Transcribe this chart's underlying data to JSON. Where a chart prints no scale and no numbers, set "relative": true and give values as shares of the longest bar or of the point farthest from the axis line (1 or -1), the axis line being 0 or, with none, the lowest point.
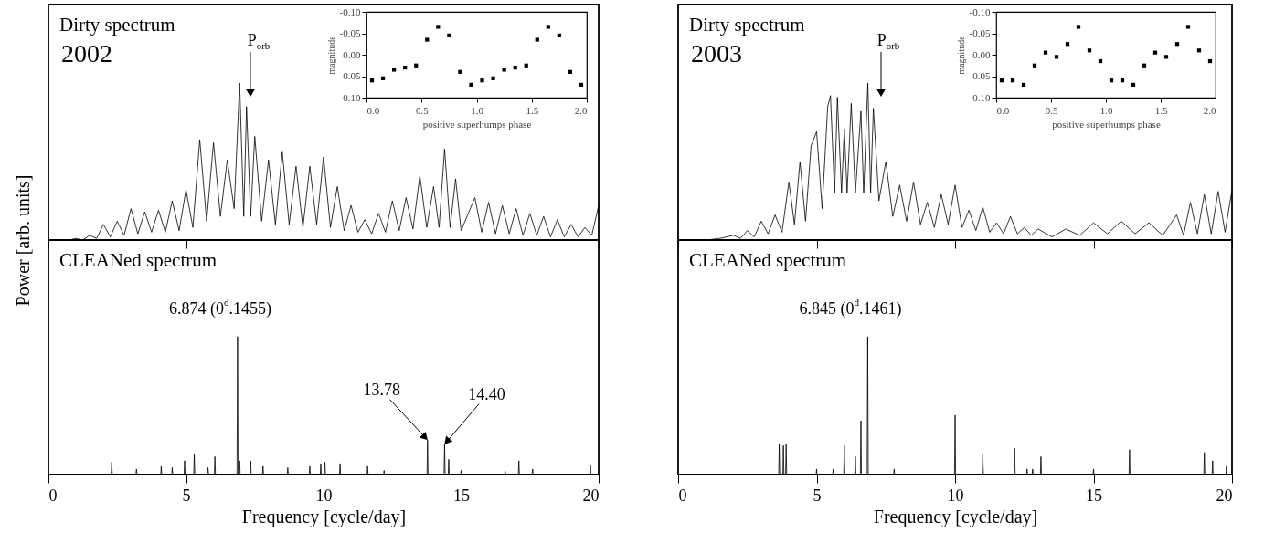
{
  "chart_data": [
    {
      "type": "line",
      "title": "Dirty spectrum",
      "subtitle": "2002",
      "ylabel": "Power [arb. units]",
      "relative": true,
      "xlim": [
        0,
        20
      ],
      "xticks": [
        0,
        5,
        10,
        15,
        20
      ],
      "tick_labels": false,
      "annotations": [
        "P$_{orb}$"
      ],
      "x": [
        0,
        0.25,
        0.5,
        0.75,
        1,
        1.25,
        1.5,
        1.75,
        2,
        2.25,
        2.5,
        2.75,
        3,
        3.25,
        3.5,
        3.75,
        4,
        4.25,
        4.5,
        4.75,
        5,
        5.25,
        5.5,
        5.75,
        6,
        6.25,
        6.5,
        6.75,
        6.95,
        7.1,
        7.2,
        7.35,
        7.5,
        7.75,
        8,
        8.25,
        8.5,
        8.75,
        9,
        9.25,
        9.5,
        9.75,
        10,
        10.25,
        10.5,
        10.75,
        11,
        11.25,
        11.5,
        11.75,
        12,
        12.25,
        12.5,
        12.75,
        13,
        13.25,
        13.5,
        13.75,
        14,
        14.2,
        14.4,
        14.6,
        14.8,
        15,
        15.5,
        15.75,
        16,
        16.25,
        16.5,
        16.75,
        17,
        17.25,
        17.5,
        17.75,
        18,
        18.25,
        18.5,
        18.75,
        19,
        19.25,
        19.5,
        19.75,
        20
      ],
      "series": [
        {
          "color": "#000000",
          "values": [
            0,
            0,
            0,
            0,
            0.01,
            0,
            0.03,
            0.01,
            0.1,
            0.02,
            0.12,
            0.03,
            0.2,
            0.04,
            0.18,
            0.05,
            0.19,
            0.05,
            0.25,
            0.06,
            0.32,
            0.08,
            0.64,
            0.12,
            0.62,
            0.15,
            0.51,
            0.2,
            1,
            0.15,
            0.85,
            0.15,
            0.66,
            0.12,
            0.51,
            0.1,
            0.56,
            0.1,
            0.47,
            0.08,
            0.47,
            0.1,
            0.53,
            0.08,
            0.34,
            0.06,
            0.22,
            0.05,
            0.13,
            0.04,
            0.17,
            0.05,
            0.25,
            0.06,
            0.27,
            0.07,
            0.41,
            0.08,
            0.34,
            0.08,
            0.58,
            0.08,
            0.39,
            0.06,
            0.27,
            0.05,
            0.24,
            0.04,
            0.22,
            0.04,
            0.2,
            0.03,
            0.17,
            0.03,
            0.15,
            0.02,
            0.13,
            0.02,
            0.1,
            0.02,
            0.08,
            0.03,
            0.22
          ]
        }
      ]
    },
    {
      "type": "scatter",
      "xlabel": "positive superhumps phase",
      "ylabel": "magnitude",
      "marker": "square",
      "xlim": [
        0,
        2
      ],
      "ylim": [
        0.1,
        -0.1
      ],
      "xticks": [
        {
          "value": 0,
          "label": "0.0"
        },
        {
          "value": 0.5,
          "label": "0.5"
        },
        {
          "value": 1,
          "label": "1.0"
        },
        {
          "value": 1.5,
          "label": "1.5"
        },
        {
          "value": 2,
          "label": "2.0"
        }
      ],
      "yticks": [
        {
          "value": -0.1,
          "label": "-0.10"
        },
        {
          "value": -0.05,
          "label": "-0.05"
        },
        {
          "value": 0,
          "label": "0.00"
        },
        {
          "value": 0.05,
          "label": "0.05"
        },
        {
          "value": 0.1,
          "label": "0.10"
        }
      ],
      "x": [
        0.05,
        0.15,
        0.25,
        0.35,
        0.45,
        0.55,
        0.65,
        0.75,
        0.85,
        0.95,
        1.05,
        1.15,
        1.25,
        1.35,
        1.45,
        1.55,
        1.65,
        1.75,
        1.85,
        1.95
      ],
      "series": [
        {
          "color": "#000000",
          "values": [
            0.06,
            0.055,
            0.035,
            0.03,
            0.025,
            -0.035,
            -0.065,
            -0.045,
            0.04,
            0.07,
            0.06,
            0.055,
            0.035,
            0.03,
            0.025,
            -0.035,
            -0.065,
            -0.045,
            0.04,
            0.07
          ]
        }
      ]
    },
    {
      "type": "line",
      "title": "CLEANed spectrum",
      "xlabel": "Frequency [cycle/day]",
      "relative": true,
      "xlim": [
        0,
        20
      ],
      "xticks": [
        0,
        5,
        10,
        15,
        20
      ],
      "tick_labels": "x",
      "annotations": [
        {
          "text": "6.874 (0$^{d}$.1455)",
          "x": 6.874,
          "y": 1
        },
        {
          "text": "13.78",
          "x": 13.78,
          "y": 0.25
        },
        {
          "text": "14.40",
          "x": 14.4,
          "y": 0.22
        }
      ],
      "x": [
        0,
        2.28,
        2.3,
        2.32,
        3.18,
        3.2,
        3.22,
        4.08,
        4.1,
        4.12,
        4.48,
        4.5,
        4.52,
        4.93,
        4.95,
        4.97,
        5.28,
        5.3,
        5.32,
        5.78,
        5.8,
        5.82,
        6.03,
        6.05,
        6.07,
        6.854,
        6.874,
        6.894,
        6.93,
        6.95,
        6.97,
        7.33,
        7.35,
        7.37,
        7.78,
        7.8,
        7.82,
        8.68,
        8.7,
        8.72,
        9.48,
        9.5,
        9.52,
        9.88,
        9.9,
        9.92,
        10.03,
        10.05,
        10.07,
        10.58,
        10.6,
        10.62,
        11.58,
        11.6,
        11.62,
        12.18,
        12.2,
        12.22,
        13.76,
        13.78,
        13.8,
        14.38,
        14.4,
        14.42,
        14.53,
        14.55,
        14.57,
        14.98,
        15,
        15.02,
        16.58,
        16.6,
        16.62,
        17.08,
        17.1,
        17.12,
        17.58,
        17.6,
        17.62,
        19.68,
        19.7,
        19.72,
        20
      ],
      "series": [
        {
          "color": "#000000",
          "values": [
            0,
            0,
            0.09,
            0,
            0,
            0.04,
            0,
            0,
            0.06,
            0,
            0,
            0.05,
            0,
            0,
            0.1,
            0,
            0,
            0.15,
            0,
            0,
            0.05,
            0,
            0,
            0.13,
            0,
            0,
            1,
            0,
            0,
            0.1,
            0,
            0,
            0.1,
            0,
            0,
            0.06,
            0,
            0,
            0.05,
            0,
            0,
            0.06,
            0,
            0,
            0.08,
            0,
            0,
            0.09,
            0,
            0,
            0.08,
            0,
            0,
            0.06,
            0,
            0,
            0.03,
            0,
            0,
            0.25,
            0,
            0,
            0.22,
            0,
            0,
            0.11,
            0,
            0,
            0.03,
            0,
            0,
            0.03,
            0,
            0,
            0.1,
            0,
            0,
            0.04,
            0,
            0,
            0.07,
            0,
            0
          ]
        }
      ]
    },
    {
      "type": "line",
      "title": "Dirty spectrum",
      "subtitle": "2003",
      "relative": true,
      "xlim": [
        0,
        20
      ],
      "xticks": [
        0,
        5,
        10,
        15,
        20
      ],
      "tick_labels": false,
      "annotations": [
        "P$_{orb}$"
      ],
      "x": [
        0,
        0.5,
        1,
        1.5,
        2,
        2.25,
        2.5,
        2.75,
        3,
        3.25,
        3.5,
        3.75,
        4,
        4.2,
        4.4,
        4.6,
        4.8,
        5,
        5.2,
        5.4,
        5.5,
        5.65,
        5.75,
        5.9,
        6,
        6.1,
        6.25,
        6.4,
        6.6,
        6.7,
        6.85,
        6.95,
        7.05,
        7.25,
        7.5,
        7.75,
        8,
        8.25,
        8.5,
        8.75,
        9,
        9.25,
        9.5,
        9.75,
        10,
        10.25,
        10.5,
        10.75,
        11,
        11.25,
        11.5,
        11.75,
        12,
        12.25,
        12.5,
        12.75,
        13,
        13.5,
        14,
        14.5,
        15,
        15.5,
        16,
        16.5,
        17,
        17.5,
        18,
        18.25,
        18.5,
        18.75,
        19,
        19.25,
        19.5,
        19.75,
        20
      ],
      "series": [
        {
          "color": "#000000",
          "values": [
            0,
            0,
            0,
            0.01,
            0.03,
            0.01,
            0.06,
            0.02,
            0.12,
            0.04,
            0.16,
            0.05,
            0.37,
            0.1,
            0.5,
            0.12,
            0.6,
            0.69,
            0.2,
            0.85,
            0.92,
            0.3,
            0.91,
            0.3,
            0.71,
            0.3,
            0.87,
            0.3,
            0.82,
            0.3,
            1,
            0.3,
            0.84,
            0.25,
            0.5,
            0.15,
            0.35,
            0.12,
            0.37,
            0.1,
            0.24,
            0.08,
            0.29,
            0.1,
            0.35,
            0.08,
            0.19,
            0.06,
            0.21,
            0.05,
            0.11,
            0.04,
            0.15,
            0.04,
            0.08,
            0.03,
            0.07,
            0.02,
            0.07,
            0.03,
            0.11,
            0.04,
            0.12,
            0.04,
            0.11,
            0.03,
            0.16,
            0.03,
            0.24,
            0.04,
            0.29,
            0.04,
            0.31,
            0.05,
            0.32
          ]
        }
      ]
    },
    {
      "type": "scatter",
      "xlabel": "positive superhumps phase",
      "ylabel": "magnitude",
      "marker": "square",
      "xlim": [
        0,
        2
      ],
      "ylim": [
        0.1,
        -0.1
      ],
      "xticks": [
        {
          "value": 0,
          "label": "0.0"
        },
        {
          "value": 0.5,
          "label": "0.5"
        },
        {
          "value": 1,
          "label": "1.0"
        },
        {
          "value": 1.5,
          "label": "1.5"
        },
        {
          "value": 2,
          "label": "2.0"
        }
      ],
      "yticks": [
        {
          "value": -0.1,
          "label": "-0.10"
        },
        {
          "value": -0.05,
          "label": "-0.05"
        },
        {
          "value": 0,
          "label": "0.00"
        },
        {
          "value": 0.05,
          "label": "0.05"
        },
        {
          "value": 0.1,
          "label": "0.10"
        }
      ],
      "x": [
        0.05,
        0.15,
        0.25,
        0.35,
        0.45,
        0.55,
        0.65,
        0.75,
        0.85,
        0.95,
        1.05,
        1.15,
        1.25,
        1.35,
        1.45,
        1.55,
        1.65,
        1.75,
        1.85,
        1.95
      ],
      "series": [
        {
          "color": "#000000",
          "values": [
            0.06,
            0.06,
            0.07,
            0.025,
            -0.005,
            0.005,
            -0.025,
            -0.065,
            -0.01,
            0.015,
            0.06,
            0.06,
            0.07,
            0.025,
            -0.005,
            0.005,
            -0.025,
            -0.065,
            -0.01,
            0.015
          ]
        }
      ]
    },
    {
      "type": "line",
      "title": "CLEANed spectrum",
      "xlabel": "Frequency [cycle/day]",
      "relative": true,
      "xlim": [
        0,
        20
      ],
      "xticks": [
        0,
        5,
        10,
        15,
        20
      ],
      "tick_labels": "x",
      "annotations": [
        {
          "text": "6.845 (0$^{d}$.1461)",
          "x": 6.845,
          "y": 1
        }
      ],
      "x": [
        0,
        3.63,
        3.65,
        3.67,
        3.78,
        3.8,
        3.82,
        3.88,
        3.9,
        3.92,
        4.98,
        5,
        5.02,
        5.58,
        5.6,
        5.62,
        5.98,
        6,
        6.02,
        6.38,
        6.4,
        6.42,
        6.58,
        6.6,
        6.62,
        6.825,
        6.845,
        6.865,
        7.78,
        7.8,
        7.82,
        9.98,
        10,
        10.02,
        10.98,
        11,
        11.02,
        12.13,
        12.15,
        12.17,
        12.58,
        12.6,
        12.62,
        12.78,
        12.8,
        12.82,
        13.08,
        13.1,
        13.12,
        14.98,
        15,
        15.02,
        16.28,
        16.3,
        16.32,
        18.98,
        19,
        19.02,
        19.28,
        19.3,
        19.32,
        19.78,
        19.8,
        19.82,
        20
      ],
      "series": [
        {
          "color": "#000000",
          "values": [
            0,
            0,
            0.22,
            0,
            0,
            0.21,
            0,
            0,
            0.22,
            0,
            0,
            0.04,
            0,
            0,
            0.04,
            0,
            0,
            0.21,
            0,
            0,
            0.13,
            0,
            0,
            0.39,
            0,
            0,
            1,
            0,
            0,
            0.04,
            0,
            0,
            0.43,
            0,
            0,
            0.15,
            0,
            0,
            0.19,
            0,
            0,
            0.04,
            0,
            0,
            0.04,
            0,
            0,
            0.13,
            0,
            0,
            0.04,
            0,
            0,
            0.18,
            0,
            0,
            0.16,
            0,
            0,
            0.1,
            0,
            0,
            0.06,
            0,
            0
          ]
        }
      ]
    }
  ]
}
